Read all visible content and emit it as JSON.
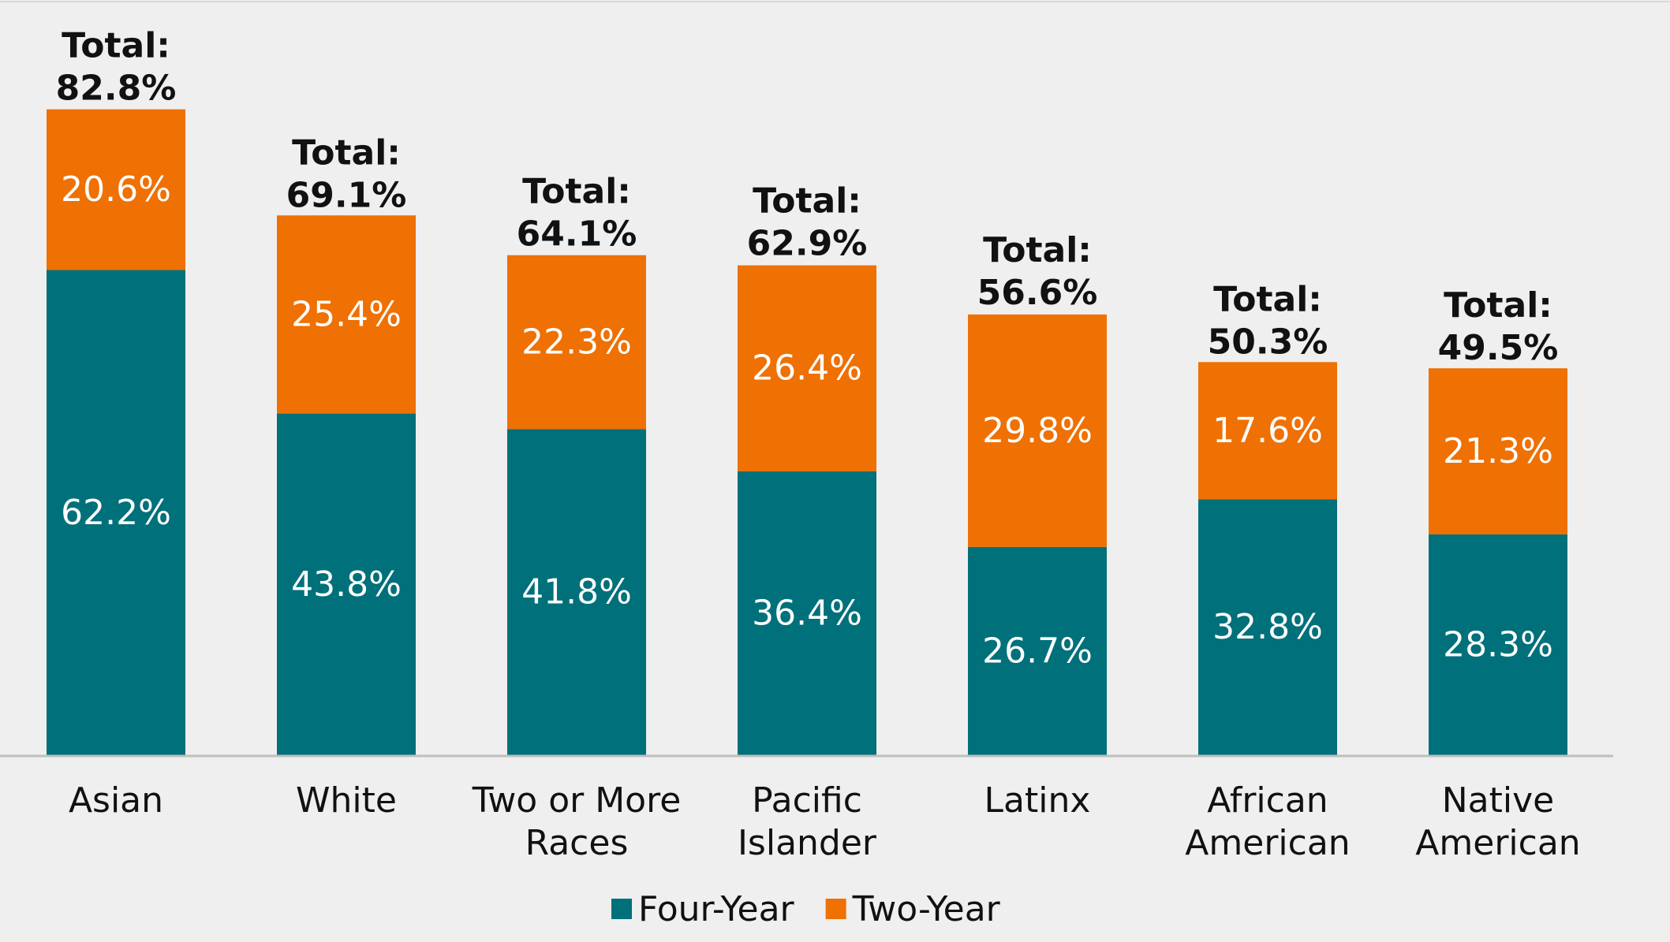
{
  "chart_data": {
    "type": "bar",
    "stacked": true,
    "categories": [
      [
        "Asian"
      ],
      [
        "White"
      ],
      [
        "Two or More",
        "Races"
      ],
      [
        "Pacific",
        "Islander"
      ],
      [
        "Latinx"
      ],
      [
        "African",
        "American"
      ],
      [
        "Native",
        "American"
      ]
    ],
    "series": [
      {
        "name": "Four-Year",
        "color": "#00707a",
        "values": [
          62.2,
          43.8,
          41.8,
          36.4,
          26.7,
          32.8,
          28.3
        ]
      },
      {
        "name": "Two-Year",
        "color": "#ef7003",
        "values": [
          20.6,
          25.4,
          22.3,
          26.4,
          29.8,
          17.6,
          21.3
        ]
      }
    ],
    "totals": [
      82.8,
      69.1,
      64.1,
      62.9,
      56.6,
      50.3,
      49.5
    ],
    "total_prefix": "Total:",
    "value_suffix": "%",
    "ylim": [
      0,
      90
    ],
    "grid": false,
    "legend_position": "bottom-center",
    "title": "",
    "xlabel": "",
    "ylabel": ""
  }
}
